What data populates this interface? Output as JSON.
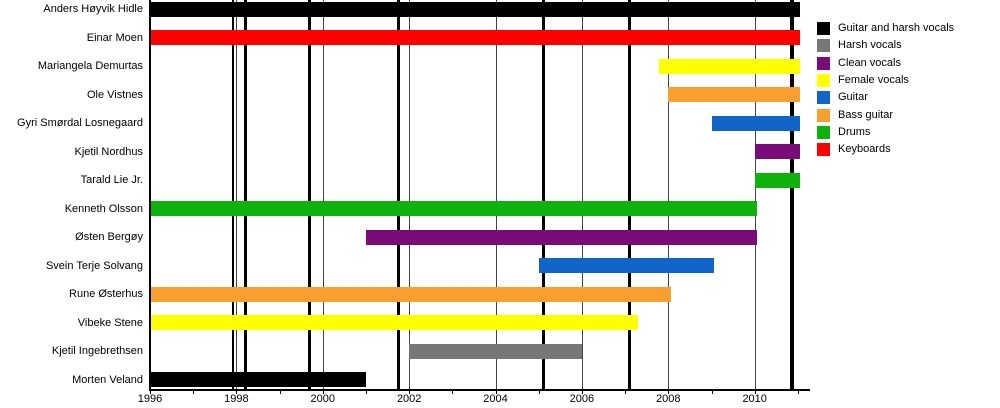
{
  "chart_data": {
    "type": "bar",
    "subtype": "timeline-gantt",
    "title": "",
    "x_axis": {
      "min": 1996,
      "max": 2011.28,
      "tick_years": [
        1996,
        1997,
        1998,
        1999,
        2000,
        2001,
        2002,
        2003,
        2004,
        2005,
        2006,
        2007,
        2008,
        2009,
        2010,
        2011
      ],
      "labeled_tick_years": [
        1996,
        1998,
        2000,
        2002,
        2004,
        2006,
        2008,
        2010
      ]
    },
    "gridline_years": [
      1998,
      2000,
      2002,
      2004,
      2006,
      2008,
      2010
    ],
    "release_event_years": [
      {
        "year": 1997.92,
        "thickness": 2
      },
      {
        "year": 1998.2,
        "thickness": 3
      },
      {
        "year": 1999.68,
        "thickness": 3
      },
      {
        "year": 2001.75,
        "thickness": 3
      },
      {
        "year": 2005.1,
        "thickness": 3
      },
      {
        "year": 2007.1,
        "thickness": 3
      },
      {
        "year": 2010.87,
        "thickness": 4
      }
    ],
    "colors": {
      "black": "#000000",
      "gray": "#777777",
      "purple": "#7A0C7A",
      "yellow": "#FFFF00",
      "blue": "#1165C9",
      "orange": "#F99F30",
      "green": "#0DB20D",
      "red": "#FF0000"
    },
    "members": [
      {
        "name": "Anders Høyvik Hidle",
        "role": "Guitar and harsh vocals",
        "color": "black",
        "start": 1996.0,
        "end": 2011.05
      },
      {
        "name": "Einar Moen",
        "role": "Keyboards",
        "color": "red",
        "start": 1996.0,
        "end": 2011.05
      },
      {
        "name": "Mariangela Demurtas",
        "role": "Female vocals",
        "color": "yellow",
        "start": 2007.78,
        "end": 2011.05
      },
      {
        "name": "Ole Vistnes",
        "role": "Bass guitar",
        "color": "orange",
        "start": 2008.0,
        "end": 2011.05
      },
      {
        "name": "Gyri Smørdal Losnegaard",
        "role": "Guitar",
        "color": "blue",
        "start": 2009.0,
        "end": 2011.05
      },
      {
        "name": "Kjetil Nordhus",
        "role": "Clean vocals",
        "color": "purple",
        "start": 2010.0,
        "end": 2011.05
      },
      {
        "name": "Tarald Lie Jr.",
        "role": "Drums",
        "color": "green",
        "start": 2010.0,
        "end": 2011.05
      },
      {
        "name": "Kenneth Olsson",
        "role": "Drums",
        "color": "green",
        "start": 1996.0,
        "end": 2010.05
      },
      {
        "name": "Østen Bergøy",
        "role": "Clean vocals",
        "color": "purple",
        "start": 2001.0,
        "end": 2010.05
      },
      {
        "name": "Svein Terje Solvang",
        "role": "Guitar",
        "color": "blue",
        "start": 2005.0,
        "end": 2009.05
      },
      {
        "name": "Rune Østerhus",
        "role": "Bass guitar",
        "color": "orange",
        "start": 1996.0,
        "end": 2008.05
      },
      {
        "name": "Vibeke Stene",
        "role": "Female vocals",
        "color": "yellow",
        "start": 1996.0,
        "end": 2007.3
      },
      {
        "name": "Kjetil Ingebrethsen",
        "role": "Harsh vocals",
        "color": "gray",
        "start": 2002.0,
        "end": 2006.0
      },
      {
        "name": "Morten Veland",
        "role": "Guitar and harsh vocals",
        "color": "black",
        "start": 1996.0,
        "end": 2001.0
      }
    ],
    "legend": {
      "position": "top-right",
      "items": [
        {
          "label": "Guitar and harsh vocals",
          "color": "black"
        },
        {
          "label": "Harsh vocals",
          "color": "gray"
        },
        {
          "label": "Clean vocals",
          "color": "purple"
        },
        {
          "label": "Female vocals",
          "color": "yellow"
        },
        {
          "label": "Guitar",
          "color": "blue"
        },
        {
          "label": "Bass guitar",
          "color": "orange"
        },
        {
          "label": "Drums",
          "color": "green"
        },
        {
          "label": "Keyboards",
          "color": "red"
        }
      ]
    }
  }
}
